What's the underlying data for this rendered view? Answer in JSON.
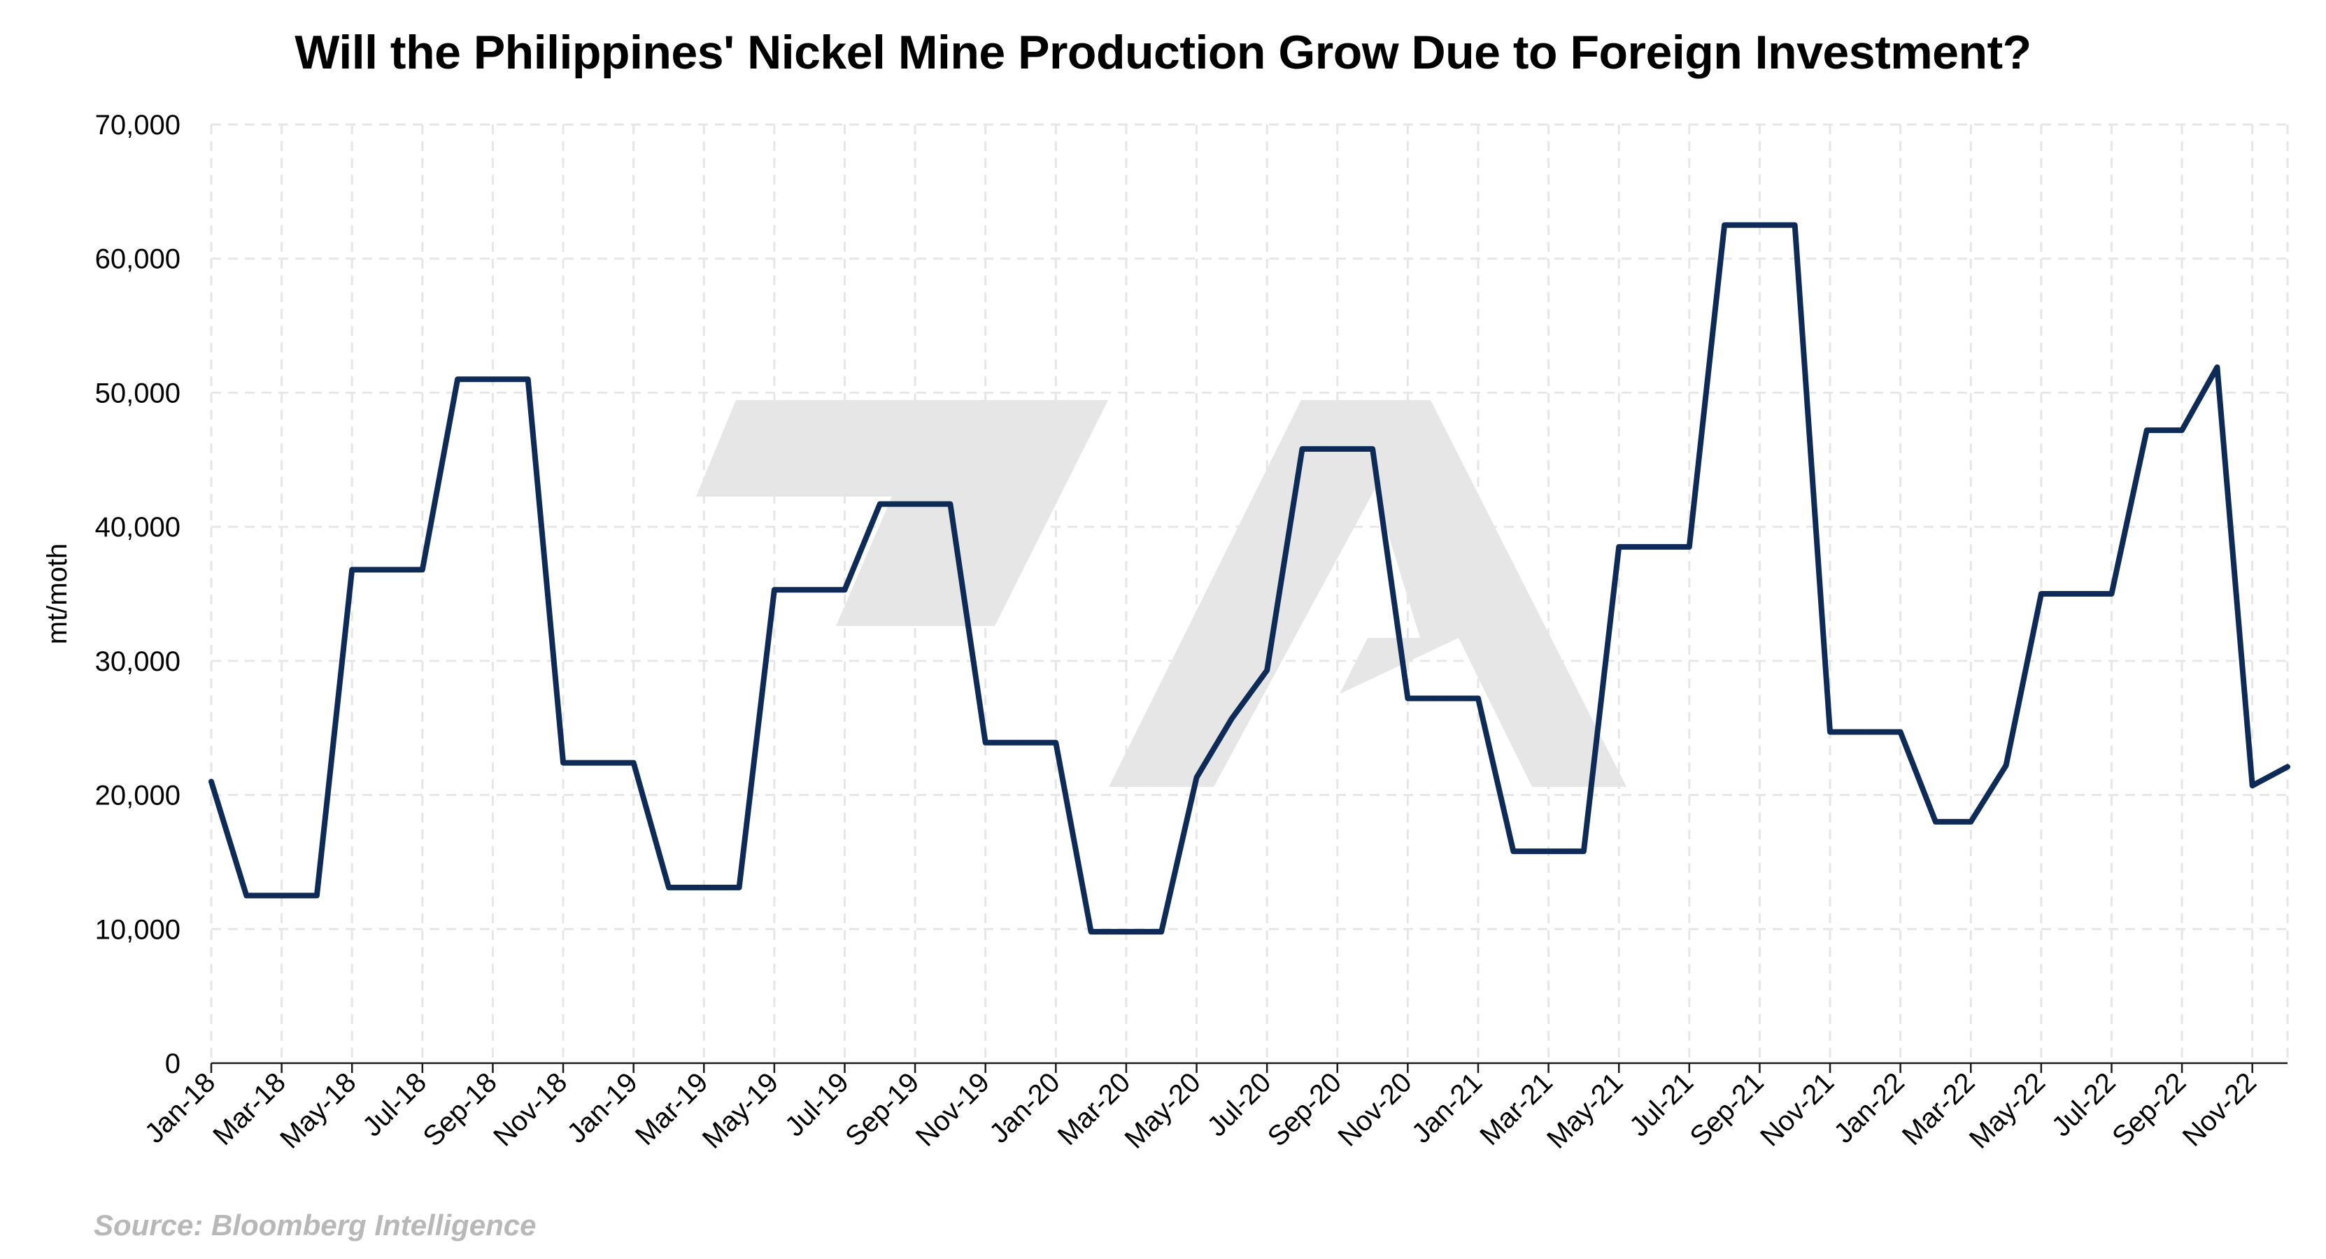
{
  "chart_data": {
    "type": "line",
    "title": "Will the Philippines' Nickel Mine Production Grow Due to Foreign Investment?",
    "ylabel": "mt/moth",
    "source": "Source: Bloomberg Intelligence",
    "ylim": [
      0,
      70000
    ],
    "yticks": [
      0,
      10000,
      20000,
      30000,
      40000,
      50000,
      60000,
      70000
    ],
    "ytick_labels": [
      "0",
      "10,000",
      "20,000",
      "30,000",
      "40,000",
      "50,000",
      "60,000",
      "70,000"
    ],
    "grid": true,
    "legend": "none",
    "colors": {
      "line": "#0d2b56",
      "grid": "#e6e6e6",
      "watermark": "#e6e6e6"
    },
    "x": [
      "Jan-18",
      "Feb-18",
      "Mar-18",
      "Apr-18",
      "May-18",
      "Jun-18",
      "Jul-18",
      "Aug-18",
      "Sep-18",
      "Oct-18",
      "Nov-18",
      "Dec-18",
      "Jan-19",
      "Feb-19",
      "Mar-19",
      "Apr-19",
      "May-19",
      "Jun-19",
      "Jul-19",
      "Aug-19",
      "Sep-19",
      "Oct-19",
      "Nov-19",
      "Dec-19",
      "Jan-20",
      "Feb-20",
      "Mar-20",
      "Apr-20",
      "May-20",
      "Jun-20",
      "Jul-20",
      "Aug-20",
      "Sep-20",
      "Oct-20",
      "Nov-20",
      "Dec-20",
      "Jan-21",
      "Feb-21",
      "Mar-21",
      "Apr-21",
      "May-21",
      "Jun-21",
      "Jul-21",
      "Aug-21",
      "Sep-21",
      "Oct-21",
      "Nov-21",
      "Dec-21",
      "Jan-22",
      "Feb-22",
      "Mar-22",
      "Apr-22",
      "May-22",
      "Jun-22",
      "Jul-22",
      "Aug-22",
      "Sep-22",
      "Oct-22",
      "Nov-22",
      "Dec-22"
    ],
    "xtick_labels": [
      "Jan-18",
      "Mar-18",
      "May-18",
      "Jul-18",
      "Sep-18",
      "Nov-18",
      "Jan-19",
      "Mar-19",
      "May-19",
      "Jul-19",
      "Sep-19",
      "Nov-19",
      "Jan-20",
      "Mar-20",
      "May-20",
      "Jul-20",
      "Sep-20",
      "Nov-20",
      "Jan-21",
      "Mar-21",
      "May-21",
      "Jul-21",
      "Sep-21",
      "Nov-21",
      "Jan-22",
      "Mar-22",
      "May-22",
      "Jul-22",
      "Sep-22",
      "Nov-22"
    ],
    "series": [
      {
        "values": [
          21000,
          12500,
          12500,
          12500,
          36800,
          36800,
          36800,
          51000,
          51000,
          51000,
          22400,
          22400,
          22400,
          13100,
          13100,
          13100,
          35300,
          35300,
          35300,
          41700,
          41700,
          41700,
          23900,
          23900,
          23900,
          9800,
          9800,
          9800,
          21300,
          25700,
          29300,
          45800,
          45800,
          45800,
          27200,
          27200,
          27200,
          15800,
          15800,
          15800,
          38500,
          38500,
          38500,
          62500,
          62500,
          62500,
          24700,
          24700,
          24700,
          18000,
          18000,
          22200,
          35000,
          35000,
          35000,
          47200,
          47200,
          51900,
          20700,
          22100
        ]
      }
    ]
  }
}
